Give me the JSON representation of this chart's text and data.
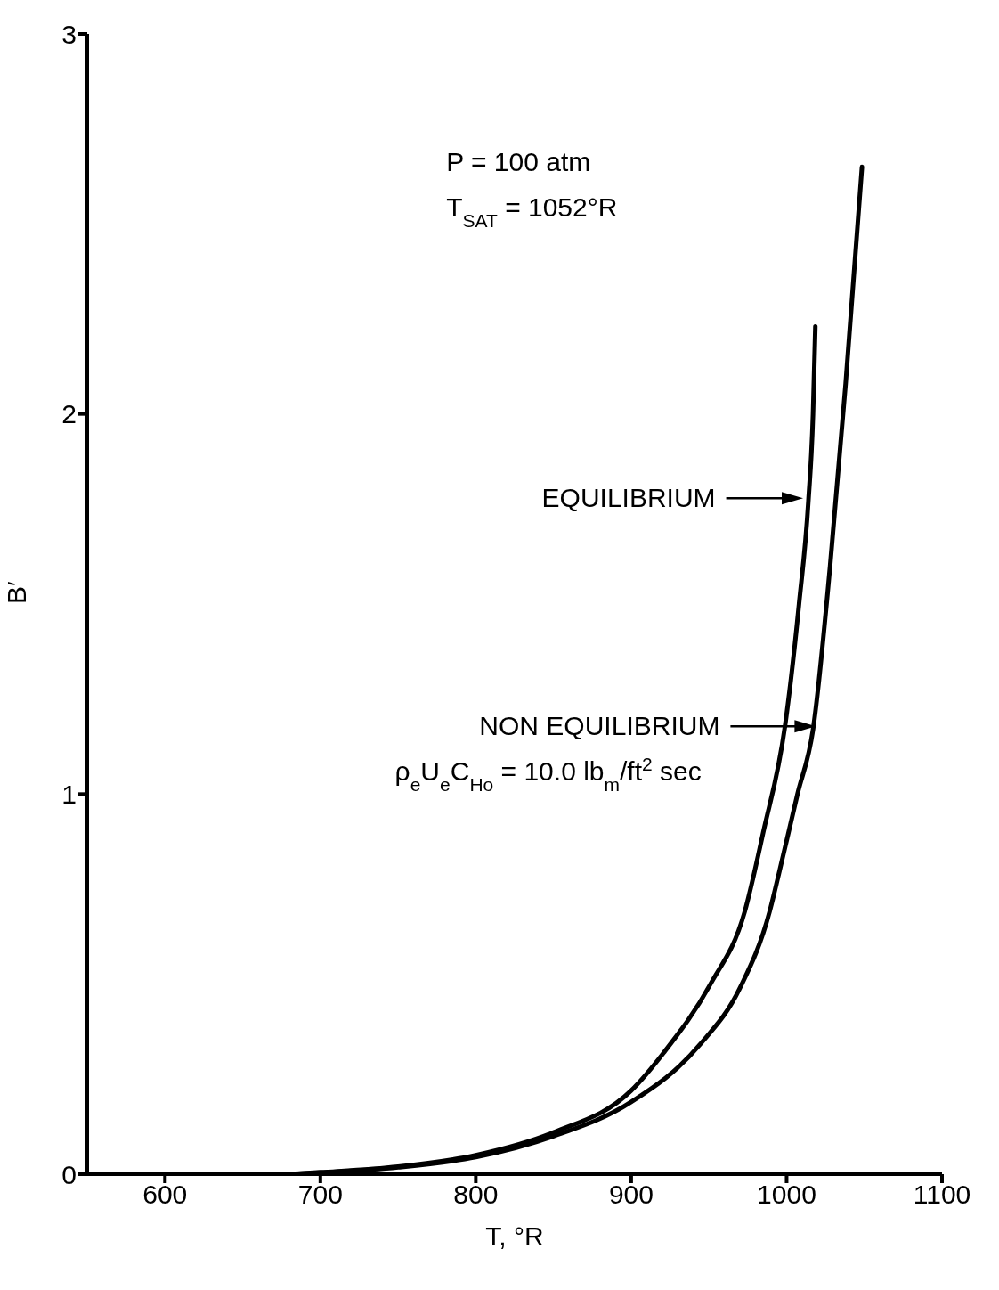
{
  "chart_data": {
    "type": "line",
    "xlabel": "T, °R",
    "ylabel": "B′",
    "xlim": [
      550,
      1100
    ],
    "xticks": [
      600,
      700,
      800,
      900,
      1000,
      1100
    ],
    "ylim": [
      0,
      3
    ],
    "yticks": [
      0,
      1,
      2,
      3
    ],
    "grid": false,
    "legend": false,
    "marker": "none",
    "line_style": "solid",
    "series": [
      {
        "color": "#000000",
        "x": [
          680,
          700,
          750,
          800,
          850,
          900,
          921,
          951,
          973,
          985,
          999,
          1008,
          1014,
          1017,
          1018.5
        ],
        "values": [
          0,
          0.005,
          0.02,
          0.05,
          0.11,
          0.22,
          0.32,
          0.5,
          0.69,
          0.9,
          1.18,
          1.5,
          1.77,
          2.0,
          2.23
        ]
      },
      {
        "color": "#000000",
        "x": [
          680,
          700,
          750,
          800,
          850,
          900,
          944,
          970,
          989,
          995,
          1007,
          1017,
          1028,
          1038,
          1048.5
        ],
        "values": [
          0,
          0.004,
          0.018,
          0.045,
          0.1,
          0.19,
          0.34,
          0.49,
          0.69,
          0.79,
          1.0,
          1.17,
          1.6,
          2.08,
          2.65
        ]
      }
    ],
    "annotations": [
      "P = 100 atm",
      "T$_{SAT}$ = 1052°R",
      "EQUILIBRIUM",
      "NON EQUILIBRIUM",
      "ρ$_{e}$U$_{e}$C$_{Ho}$ = 10.0 lb$_{m}$/ft$^{2}$ sec"
    ]
  }
}
